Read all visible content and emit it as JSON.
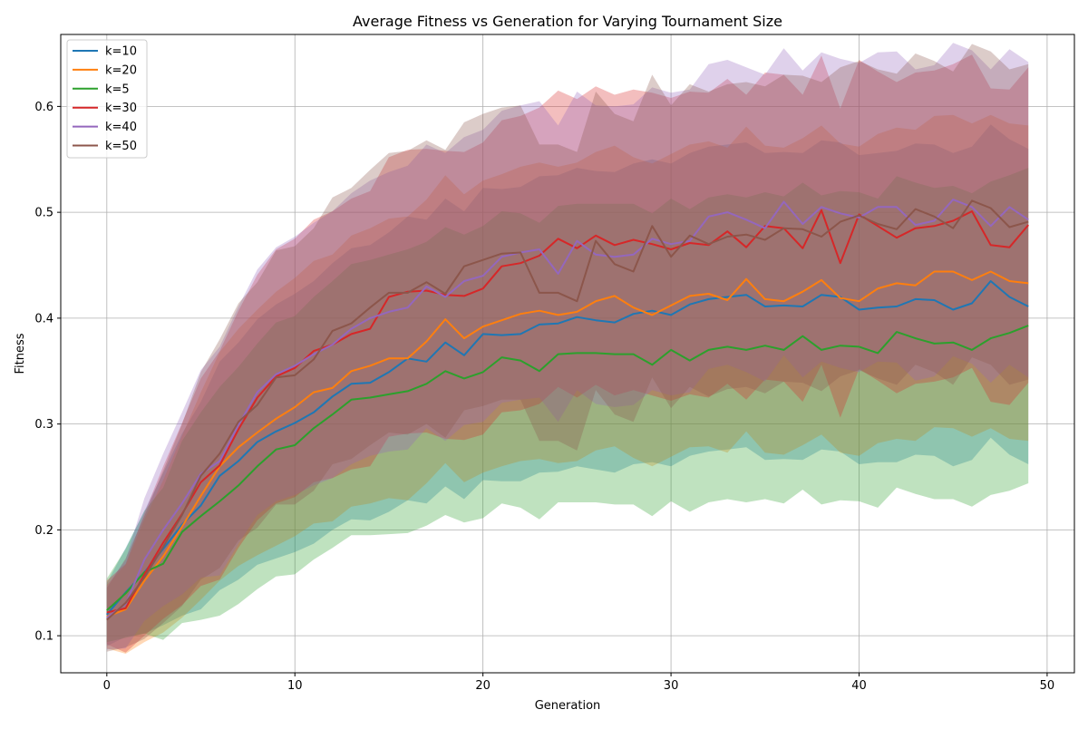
{
  "chart_data": {
    "type": "line",
    "title": "Average Fitness vs Generation for Varying Tournament Size",
    "xlabel": "Generation",
    "ylabel": "Fitness",
    "xlim": [
      -2.45,
      51.45
    ],
    "ylim": [
      0.065,
      0.668
    ],
    "xticks": [
      0,
      10,
      20,
      30,
      40,
      50
    ],
    "yticks": [
      0.1,
      0.2,
      0.3,
      0.4,
      0.5,
      0.6
    ],
    "grid": true,
    "legend_position": "top-left",
    "band_description": "shaded region around each line",
    "x": [
      0,
      1,
      2,
      3,
      4,
      5,
      6,
      7,
      8,
      9,
      10,
      11,
      12,
      13,
      14,
      15,
      16,
      17,
      18,
      19,
      20,
      21,
      22,
      23,
      24,
      25,
      26,
      27,
      28,
      29,
      30,
      31,
      32,
      33,
      34,
      35,
      36,
      37,
      38,
      39,
      40,
      41,
      42,
      43,
      44,
      45,
      46,
      47,
      48,
      49
    ],
    "series": [
      {
        "name": "k=10",
        "color": "#1f77b4",
        "values": [
          0.12,
          0.141,
          0.16,
          0.182,
          0.205,
          0.223,
          0.251,
          0.265,
          0.283,
          0.293,
          0.301,
          0.311,
          0.326,
          0.338,
          0.339,
          0.349,
          0.362,
          0.359,
          0.377,
          0.365,
          0.385,
          0.384,
          0.385,
          0.394,
          0.395,
          0.401,
          0.398,
          0.396,
          0.404,
          0.407,
          0.403,
          0.413,
          0.418,
          0.42,
          0.422,
          0.411,
          0.412,
          0.411,
          0.422,
          0.42,
          0.408,
          0.41,
          0.411,
          0.418,
          0.417,
          0.408,
          0.414,
          0.435,
          0.42,
          0.411
        ],
        "band": [
          0.03,
          0.042,
          0.058,
          0.072,
          0.086,
          0.098,
          0.108,
          0.112,
          0.116,
          0.12,
          0.122,
          0.124,
          0.126,
          0.128,
          0.13,
          0.132,
          0.134,
          0.134,
          0.136,
          0.136,
          0.138,
          0.138,
          0.139,
          0.14,
          0.14,
          0.141,
          0.141,
          0.142,
          0.142,
          0.143,
          0.143,
          0.143,
          0.144,
          0.144,
          0.144,
          0.145,
          0.145,
          0.145,
          0.146,
          0.146,
          0.146,
          0.146,
          0.147,
          0.147,
          0.147,
          0.148,
          0.148,
          0.148,
          0.149,
          0.149
        ]
      },
      {
        "name": "k=20",
        "color": "#ff7f0e",
        "values": [
          0.118,
          0.125,
          0.152,
          0.175,
          0.203,
          0.232,
          0.26,
          0.278,
          0.292,
          0.305,
          0.316,
          0.33,
          0.334,
          0.35,
          0.355,
          0.362,
          0.362,
          0.378,
          0.399,
          0.381,
          0.392,
          0.398,
          0.404,
          0.407,
          0.403,
          0.406,
          0.416,
          0.421,
          0.41,
          0.403,
          0.412,
          0.421,
          0.423,
          0.417,
          0.437,
          0.418,
          0.416,
          0.425,
          0.436,
          0.419,
          0.416,
          0.428,
          0.433,
          0.431,
          0.444,
          0.444,
          0.436,
          0.444,
          0.435,
          0.433
        ],
        "band": [
          0.03,
          0.042,
          0.058,
          0.072,
          0.086,
          0.098,
          0.108,
          0.112,
          0.116,
          0.12,
          0.122,
          0.124,
          0.126,
          0.128,
          0.13,
          0.132,
          0.134,
          0.134,
          0.136,
          0.136,
          0.138,
          0.138,
          0.139,
          0.14,
          0.14,
          0.141,
          0.141,
          0.142,
          0.142,
          0.143,
          0.143,
          0.143,
          0.144,
          0.144,
          0.144,
          0.145,
          0.145,
          0.145,
          0.146,
          0.146,
          0.146,
          0.146,
          0.147,
          0.147,
          0.147,
          0.148,
          0.148,
          0.148,
          0.149,
          0.149
        ]
      },
      {
        "name": "k=5",
        "color": "#2ca02c",
        "values": [
          0.124,
          0.14,
          0.16,
          0.168,
          0.198,
          0.213,
          0.227,
          0.242,
          0.26,
          0.276,
          0.28,
          0.296,
          0.309,
          0.323,
          0.325,
          0.328,
          0.331,
          0.338,
          0.35,
          0.343,
          0.349,
          0.363,
          0.36,
          0.35,
          0.366,
          0.367,
          0.367,
          0.366,
          0.366,
          0.356,
          0.37,
          0.36,
          0.37,
          0.373,
          0.37,
          0.374,
          0.37,
          0.383,
          0.37,
          0.374,
          0.373,
          0.367,
          0.387,
          0.381,
          0.376,
          0.377,
          0.37,
          0.381,
          0.386,
          0.393
        ],
        "band": [
          0.03,
          0.042,
          0.058,
          0.072,
          0.086,
          0.098,
          0.108,
          0.112,
          0.116,
          0.12,
          0.122,
          0.124,
          0.126,
          0.128,
          0.13,
          0.132,
          0.134,
          0.134,
          0.136,
          0.136,
          0.138,
          0.138,
          0.139,
          0.14,
          0.14,
          0.141,
          0.141,
          0.142,
          0.142,
          0.143,
          0.143,
          0.143,
          0.144,
          0.144,
          0.144,
          0.145,
          0.145,
          0.145,
          0.146,
          0.146,
          0.146,
          0.146,
          0.147,
          0.147,
          0.147,
          0.148,
          0.148,
          0.148,
          0.149,
          0.149
        ]
      },
      {
        "name": "k=30",
        "color": "#d62728",
        "values": [
          0.122,
          0.126,
          0.158,
          0.188,
          0.215,
          0.245,
          0.261,
          0.295,
          0.325,
          0.345,
          0.353,
          0.369,
          0.375,
          0.385,
          0.39,
          0.42,
          0.425,
          0.426,
          0.422,
          0.421,
          0.428,
          0.449,
          0.452,
          0.459,
          0.475,
          0.466,
          0.478,
          0.469,
          0.474,
          0.47,
          0.465,
          0.471,
          0.469,
          0.482,
          0.467,
          0.487,
          0.485,
          0.466,
          0.502,
          0.452,
          0.498,
          0.487,
          0.476,
          0.485,
          0.487,
          0.492,
          0.501,
          0.469,
          0.467,
          0.488
        ],
        "band": [
          0.03,
          0.042,
          0.058,
          0.072,
          0.086,
          0.098,
          0.108,
          0.112,
          0.116,
          0.12,
          0.122,
          0.124,
          0.126,
          0.128,
          0.13,
          0.132,
          0.134,
          0.134,
          0.136,
          0.136,
          0.138,
          0.138,
          0.139,
          0.14,
          0.14,
          0.141,
          0.141,
          0.142,
          0.142,
          0.143,
          0.143,
          0.143,
          0.144,
          0.144,
          0.144,
          0.145,
          0.145,
          0.145,
          0.146,
          0.146,
          0.146,
          0.146,
          0.147,
          0.147,
          0.147,
          0.148,
          0.148,
          0.148,
          0.149,
          0.149
        ]
      },
      {
        "name": "k=40",
        "color": "#9467bd",
        "values": [
          0.117,
          0.13,
          0.172,
          0.2,
          0.225,
          0.253,
          0.265,
          0.299,
          0.33,
          0.347,
          0.355,
          0.366,
          0.375,
          0.39,
          0.4,
          0.406,
          0.41,
          0.43,
          0.42,
          0.435,
          0.44,
          0.458,
          0.462,
          0.465,
          0.442,
          0.473,
          0.46,
          0.458,
          0.46,
          0.475,
          0.47,
          0.473,
          0.496,
          0.5,
          0.493,
          0.485,
          0.51,
          0.489,
          0.505,
          0.499,
          0.495,
          0.505,
          0.505,
          0.488,
          0.492,
          0.512,
          0.505,
          0.487,
          0.505,
          0.493
        ],
        "band": [
          0.03,
          0.042,
          0.058,
          0.072,
          0.086,
          0.098,
          0.108,
          0.112,
          0.116,
          0.12,
          0.122,
          0.124,
          0.126,
          0.128,
          0.13,
          0.132,
          0.134,
          0.134,
          0.136,
          0.136,
          0.138,
          0.138,
          0.139,
          0.14,
          0.14,
          0.141,
          0.141,
          0.142,
          0.142,
          0.143,
          0.143,
          0.143,
          0.144,
          0.144,
          0.144,
          0.145,
          0.145,
          0.145,
          0.146,
          0.146,
          0.146,
          0.146,
          0.147,
          0.147,
          0.147,
          0.148,
          0.148,
          0.148,
          0.149,
          0.149
        ]
      },
      {
        "name": "k=50",
        "color": "#8c564b",
        "values": [
          0.115,
          0.131,
          0.155,
          0.184,
          0.214,
          0.251,
          0.272,
          0.302,
          0.318,
          0.344,
          0.346,
          0.361,
          0.388,
          0.395,
          0.41,
          0.424,
          0.424,
          0.434,
          0.423,
          0.449,
          0.455,
          0.461,
          0.462,
          0.424,
          0.424,
          0.416,
          0.473,
          0.451,
          0.444,
          0.487,
          0.458,
          0.478,
          0.47,
          0.477,
          0.479,
          0.474,
          0.485,
          0.484,
          0.477,
          0.491,
          0.497,
          0.489,
          0.484,
          0.503,
          0.496,
          0.485,
          0.511,
          0.504,
          0.486,
          0.491
        ],
        "band": [
          0.03,
          0.042,
          0.058,
          0.072,
          0.086,
          0.098,
          0.108,
          0.112,
          0.116,
          0.12,
          0.122,
          0.124,
          0.126,
          0.128,
          0.13,
          0.132,
          0.134,
          0.134,
          0.136,
          0.136,
          0.138,
          0.138,
          0.139,
          0.14,
          0.14,
          0.141,
          0.141,
          0.142,
          0.142,
          0.143,
          0.143,
          0.143,
          0.144,
          0.144,
          0.144,
          0.145,
          0.145,
          0.145,
          0.146,
          0.146,
          0.146,
          0.146,
          0.147,
          0.147,
          0.147,
          0.148,
          0.148,
          0.148,
          0.149,
          0.149
        ]
      }
    ]
  }
}
